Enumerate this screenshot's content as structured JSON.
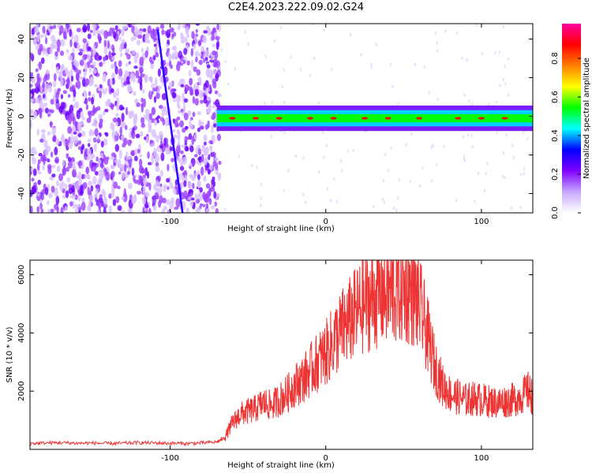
{
  "title": "C2E4.2023.222.09.02.G24",
  "chart_data": [
    {
      "type": "heatmap",
      "title": "C2E4.2023.222.09.02.G24",
      "xlabel": "Height of straight line (km)",
      "ylabel": "Frequency (Hz)",
      "xlim": [
        -190,
        133
      ],
      "ylim": [
        -50,
        48
      ],
      "x_ticks": [
        -100,
        0,
        100
      ],
      "y_ticks": [
        -40,
        -20,
        0,
        20,
        40
      ],
      "colorbar": {
        "label": "Normalized spectral amplitude",
        "range": [
          0,
          0.98
        ],
        "ticks": [
          0.0,
          0.2,
          0.4,
          0.6,
          0.8
        ],
        "colormap": [
          "#ffffff",
          "#c8a8ff",
          "#8000ff",
          "#0000ff",
          "#00ffff",
          "#00ff00",
          "#ffff00",
          "#ff8000",
          "#ff0000",
          "#ff00a0"
        ]
      },
      "features": [
        {
          "label": "noise-region",
          "x_range": [
            -190,
            -68
          ],
          "y_range": [
            -50,
            48
          ],
          "amplitude": 0.15
        },
        {
          "label": "signal-band",
          "x_range": [
            -70,
            133
          ],
          "center_y": -1,
          "half_width": 3,
          "amplitude": 0.55
        },
        {
          "label": "signal-peaks",
          "x": [
            -60,
            -45,
            -30,
            -10,
            5,
            25,
            40,
            60,
            85,
            100,
            115
          ],
          "amplitude": 0.9
        },
        {
          "label": "diagonal-streak",
          "x": [
            -108,
            -92
          ],
          "y": [
            45,
            -50
          ],
          "amplitude": 0.4
        }
      ]
    },
    {
      "type": "line",
      "xlabel": "Height of straight line (km)",
      "ylabel": "SNR (10 * v/v)",
      "xlim": [
        -190,
        133
      ],
      "ylim": [
        0,
        6500
      ],
      "x_ticks": [
        -100,
        0,
        100
      ],
      "y_ticks": [
        2000,
        4000,
        6000
      ],
      "color": "#ee3333",
      "series": [
        {
          "x": [
            -190,
            -180,
            -170,
            -160,
            -150,
            -140,
            -130,
            -120,
            -110,
            -100,
            -90,
            -80,
            -70,
            -65,
            -60,
            -55,
            -50,
            -45,
            -40,
            -35,
            -30,
            -25,
            -20,
            -15,
            -10,
            -5,
            0,
            5,
            10,
            15,
            20,
            25,
            30,
            35,
            40,
            45,
            50,
            55,
            60,
            65,
            70,
            75,
            80,
            85,
            90,
            95,
            100,
            105,
            110,
            115,
            120,
            125,
            130,
            133
          ],
          "y": [
            200,
            220,
            230,
            210,
            220,
            200,
            210,
            230,
            220,
            210,
            200,
            220,
            250,
            400,
            900,
            1200,
            1300,
            1400,
            1600,
            1500,
            1700,
            1900,
            2200,
            2400,
            2700,
            3000,
            3300,
            3700,
            4100,
            4400,
            4700,
            5000,
            5200,
            5300,
            5400,
            5400,
            5500,
            5400,
            5000,
            4000,
            2900,
            2200,
            1900,
            1800,
            1700,
            1750,
            1700,
            1650,
            1600,
            1650,
            1700,
            1800,
            2000,
            1800
          ]
        }
      ]
    }
  ]
}
